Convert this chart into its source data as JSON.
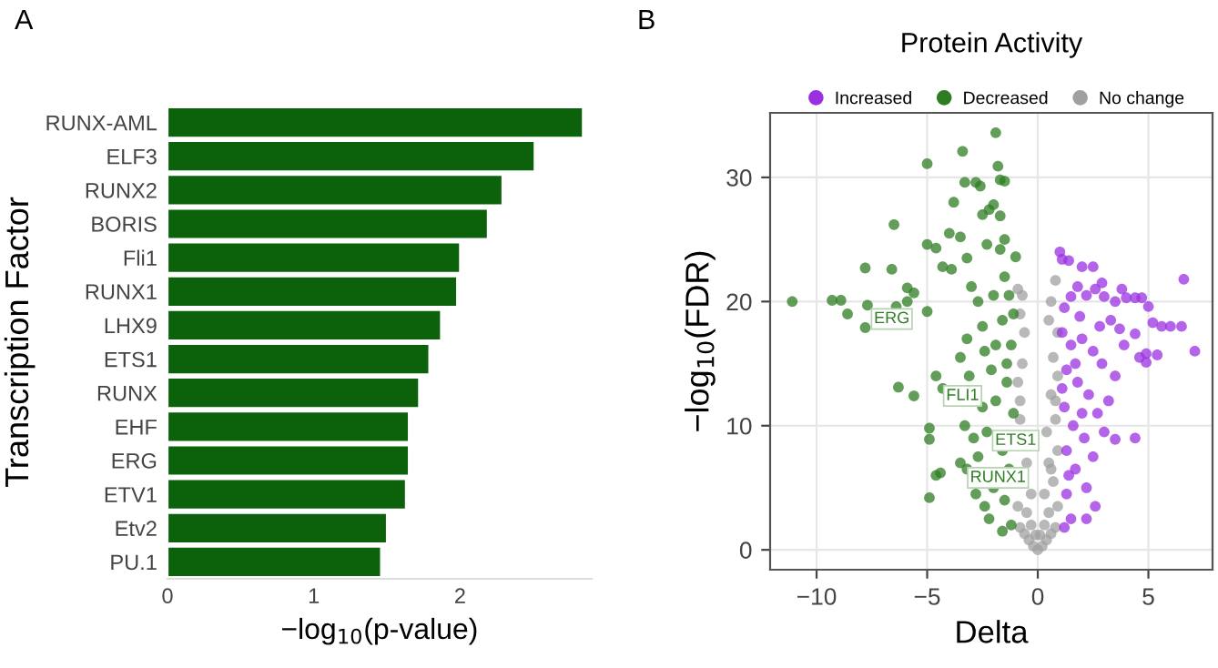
{
  "chart_data": [
    {
      "type": "bar",
      "orientation": "horizontal",
      "xlabel": "−log$_{10}$(p-value)",
      "ylabel": "Transcription Factor",
      "annotations": [
        "A"
      ],
      "categories": [
        "RUNX-AML",
        "ELF3",
        "RUNX2",
        "BORIS",
        "Fli1",
        "RUNX1",
        "LHX9",
        "ETS1",
        "RUNX",
        "EHF",
        "ERG",
        "ETV1",
        "Etv2",
        "PU.1"
      ],
      "values": [
        2.84,
        2.51,
        2.29,
        2.19,
        2.0,
        1.98,
        1.87,
        1.79,
        1.72,
        1.65,
        1.65,
        1.63,
        1.5,
        1.46
      ],
      "color": "#0b620b",
      "xlim": [
        0,
        2.9
      ],
      "xticks": [
        0,
        1,
        2
      ],
      "grid": false
    },
    {
      "type": "scatter",
      "title": "Protein Activity",
      "xlabel": "Delta",
      "ylabel": "−log$_{10}$(FDR)",
      "grid": true,
      "legend": "top",
      "marker": "circle",
      "xlim": [
        -12.1,
        7.9
      ],
      "xticks": [
        {
          "value": -10,
          "label": "−10"
        },
        {
          "value": -5,
          "label": "−5"
        },
        0,
        5
      ],
      "ylim": [
        -1.6,
        35.2
      ],
      "yticks": [
        0,
        10,
        20,
        30
      ],
      "annotations": [
        "B",
        {
          "text": "ERG",
          "x": -6.6,
          "y": 18.6
        },
        {
          "text": "FLI1",
          "x": -3.4,
          "y": 12.4
        },
        {
          "text": "ETS1",
          "x": -1.0,
          "y": 8.8
        },
        {
          "text": "RUNX1",
          "x": -1.8,
          "y": 5.8
        }
      ],
      "series": [
        {
          "name": "Increased",
          "color": "#9b30e0",
          "x": [
            1.0,
            1.1,
            1.4,
            2.0,
            2.5,
            2.9,
            3.0,
            3.5,
            3.8,
            4.0,
            4.4,
            4.7,
            5.0,
            5.2,
            5.6,
            6.0,
            6.5,
            6.6,
            7.1,
            5.4,
            4.9,
            4.9,
            4.4,
            4.6,
            3.9,
            3.7,
            3.5,
            3.2,
            3.0,
            3.5,
            4.4,
            2.6,
            2.2,
            1.8,
            1.5,
            1.2,
            1.1,
            1.5,
            2.0,
            2.5,
            2.9,
            1.3,
            1.8,
            2.3,
            2.7,
            1.2,
            1.6,
            2.1,
            2.5,
            1.3,
            1.7,
            2.2,
            2.6,
            1.3,
            1.5,
            1.2,
            2.2,
            1.1,
            1.9,
            2.8,
            3.3,
            1.4,
            2.0,
            1.7
          ],
          "values": [
            24.0,
            23.4,
            23.3,
            22.8,
            22.8,
            21.5,
            20.4,
            20.0,
            21.0,
            20.3,
            20.3,
            20.3,
            19.6,
            18.3,
            18.0,
            18.0,
            18.0,
            21.8,
            16.0,
            15.7,
            15.8,
            15.1,
            17.4,
            15.5,
            16.5,
            17.8,
            14.0,
            12.0,
            9.5,
            8.9,
            9.0,
            21.0,
            20.5,
            21.2,
            20.4,
            19.5,
            17.5,
            16.5,
            17.0,
            16.0,
            15.0,
            14.5,
            13.5,
            12.5,
            11.0,
            11.5,
            10.0,
            9.0,
            7.5,
            8.0,
            6.5,
            5.0,
            3.5,
            4.5,
            2.5,
            1.8,
            2.5,
            13.0,
            18.8,
            18.0,
            18.5,
            6.0,
            11.0,
            15.0
          ]
        },
        {
          "name": "Decreased",
          "color": "#2e7d22",
          "x": [
            -11.1,
            -9.3,
            -8.9,
            -8.6,
            -7.8,
            -7.7,
            -7.8,
            -6.6,
            -6.5,
            -6.4,
            -5.9,
            -5.9,
            -5.6,
            -5.0,
            -5.0,
            -6.3,
            -5.6,
            -4.9,
            -4.9,
            -4.9,
            -4.6,
            -4.4,
            -4.6,
            -4.3,
            -5.0,
            -4.6,
            -4.3,
            -4.0,
            -3.9,
            -3.8,
            -3.4,
            -3.3,
            -3.5,
            -3.2,
            -2.8,
            -2.6,
            -2.5,
            -2.2,
            -1.9,
            -1.8,
            -1.7,
            -1.5,
            -2.0,
            -1.7,
            -1.7,
            -1.5,
            -1.0,
            -2.3,
            -3.0,
            -2.7,
            -2.5,
            -3.2,
            -3.5,
            -3.1,
            -2.4,
            -2.1,
            -1.6,
            -1.3,
            -1.2,
            -3.3,
            -2.9,
            -2.5,
            -1.9,
            -1.4,
            -1.1,
            -3.5,
            -3.2,
            -2.7,
            -2.3,
            -1.6,
            -2.8,
            -2.4,
            -2.0,
            -1.5,
            -1.2,
            -1.6,
            -2.2,
            -1.3,
            -2.0,
            -1.5,
            -1.1,
            -1.9,
            -1.4
          ],
          "values": [
            20.0,
            20.1,
            20.1,
            19.0,
            22.7,
            19.7,
            17.9,
            22.6,
            26.2,
            19.6,
            21.1,
            20.0,
            20.7,
            31.1,
            19.2,
            13.1,
            12.4,
            9.8,
            8.9,
            4.2,
            6.0,
            6.2,
            14.0,
            13.0,
            24.6,
            24.3,
            22.8,
            25.5,
            22.6,
            28.0,
            32.1,
            29.6,
            25.2,
            23.5,
            29.6,
            29.3,
            27.0,
            27.4,
            33.6,
            30.9,
            29.8,
            29.7,
            27.8,
            26.9,
            24.2,
            25.0,
            23.6,
            24.6,
            21.2,
            20.0,
            18.0,
            17.0,
            15.5,
            14.0,
            16.0,
            14.5,
            18.5,
            20.5,
            16.5,
            10.0,
            9.0,
            11.5,
            12.0,
            13.5,
            11.0,
            7.0,
            6.5,
            7.5,
            9.5,
            8.0,
            4.5,
            3.5,
            5.0,
            4.0,
            2.0,
            1.5,
            2.5,
            6.5,
            20.5,
            22.0,
            19.0,
            16.5,
            15.0
          ]
        },
        {
          "name": "No change",
          "color": "#a0a0a0",
          "x": [
            0,
            -0.2,
            0.2,
            -0.4,
            0.4,
            -0.6,
            0.6,
            -0.8,
            0.8,
            -0.5,
            0.5,
            -0.9,
            0.9,
            -0.3,
            0.3,
            0.7,
            -0.5,
            0.5,
            0.9,
            0.4,
            -0.8,
            0.8,
            0.6,
            -0.9,
            0.9,
            -0.7,
            0.7,
            0.9,
            -0.6,
            0.5,
            -0.8,
            0.6,
            -0.7,
            0.8,
            -0.9,
            -0.3,
            0.3,
            -0.1,
            0.1,
            0.6,
            -0.8,
            0.8
          ],
          "values": [
            0.0,
            0.3,
            0.3,
            0.8,
            0.8,
            1.3,
            1.3,
            1.8,
            1.8,
            3.0,
            3.0,
            3.5,
            3.5,
            4.5,
            4.5,
            5.5,
            7.0,
            7.0,
            8.0,
            9.5,
            10.5,
            10.5,
            12.5,
            13.5,
            14.0,
            15.0,
            15.5,
            17.5,
            17.5,
            18.5,
            19.0,
            20.0,
            20.5,
            21.7,
            21.0,
            2.0,
            2.0,
            1.2,
            1.2,
            6.5,
            12.0,
            12.0
          ]
        }
      ]
    }
  ]
}
